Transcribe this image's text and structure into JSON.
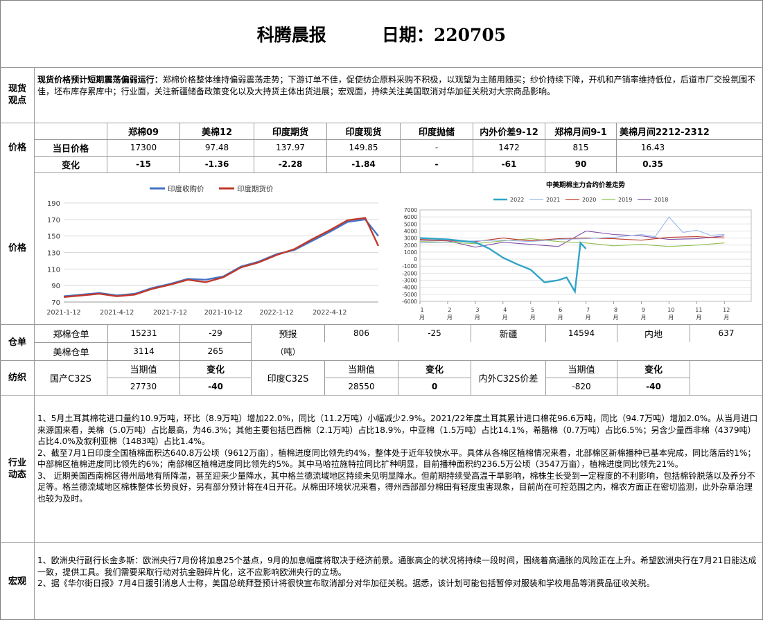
{
  "header": {
    "title": "科腾晨报",
    "date_label": "日期：220705"
  },
  "sections": {
    "spot_view": "现货观点",
    "price": "价格",
    "price_charts": "价格",
    "warehouse": "仓单",
    "textile": "纺织",
    "industry": "行业动态",
    "macro": "宏观"
  },
  "spot_view": {
    "lead": "现货价格预计短期震荡偏弱运行：",
    "text": "郑棉价格整体维持偏弱震荡走势；下游订单不佳，促使纺企原料采购不积极，以观望为主随用随买；纱价持续下降，开机和产销率维持低位，后道市厂交投氛围不佳，坯布库存累库中；行业面，关注新疆储备政策变化以及大持货主体出货进展；宏观面，持续关注美国取消对华加征关税对大宗商品影响。"
  },
  "price_table": {
    "headers": [
      "郑棉09",
      "美棉12",
      "印度期货",
      "印度现货",
      "印度抛储",
      "内外价差9-12",
      "郑棉月间9-1",
      "美棉月间2212-2312"
    ],
    "row1_label": "当日价格",
    "row1": [
      "17300",
      "97.48",
      "137.97",
      "149.85",
      "-",
      "1472",
      "815",
      "16.43"
    ],
    "row2_label": "变化",
    "row2": [
      "-15",
      "-1.36",
      "-2.28",
      "-1.84",
      "-",
      "-61",
      "90",
      "0.35"
    ]
  },
  "chart_data": [
    {
      "type": "line",
      "title": "",
      "legend_placement": "top",
      "x_tick_labels": [
        "2021-1-12",
        "2021-4-12",
        "2021-7-12",
        "2021-10-12",
        "2022-1-12",
        "2022-4-12"
      ],
      "ylim": [
        70,
        190
      ],
      "y_ticks": [
        70,
        90,
        110,
        130,
        150,
        170,
        190
      ],
      "series": [
        {
          "name": "印度收购价",
          "color": "#4472c4",
          "x": [
            "2021-1-12",
            "2021-2-12",
            "2021-3-12",
            "2021-4-12",
            "2021-5-12",
            "2021-6-12",
            "2021-7-12",
            "2021-8-12",
            "2021-9-12",
            "2021-10-12",
            "2021-11-12",
            "2021-12-12",
            "2022-1-12",
            "2022-2-12",
            "2022-3-12",
            "2022-4-12",
            "2022-5-12",
            "2022-6-12",
            "2022-7-4"
          ],
          "values": [
            77,
            79,
            81,
            78,
            80,
            87,
            92,
            98,
            97,
            101,
            113,
            119,
            128,
            133,
            144,
            155,
            167,
            170,
            150
          ]
        },
        {
          "name": "印度期货价",
          "color": "#c0392b",
          "x": [
            "2021-1-12",
            "2021-2-12",
            "2021-3-12",
            "2021-4-12",
            "2021-5-12",
            "2021-6-12",
            "2021-7-12",
            "2021-8-12",
            "2021-9-12",
            "2021-10-12",
            "2021-11-12",
            "2021-12-12",
            "2022-1-12",
            "2022-2-12",
            "2022-3-12",
            "2022-4-12",
            "2022-5-12",
            "2022-6-12",
            "2022-7-4"
          ],
          "values": [
            76,
            78,
            80,
            77,
            79,
            86,
            91,
            97,
            94,
            100,
            112,
            118,
            127,
            134,
            146,
            157,
            169,
            172,
            138
          ]
        }
      ]
    },
    {
      "type": "line",
      "title": "中美期棉主力合约价差走势",
      "legend_placement": "top",
      "x_tick_labels": [
        "1月",
        "2月",
        "3月",
        "4月",
        "5月",
        "6月",
        "7月",
        "8月",
        "9月",
        "10月",
        "11月",
        "12月"
      ],
      "ylim": [
        -6000,
        7000
      ],
      "y_ticks": [
        -6000,
        -5000,
        -4000,
        -3000,
        -2000,
        -1000,
        0,
        1000,
        2000,
        3000,
        4000,
        5000,
        6000,
        7000
      ],
      "series": [
        {
          "name": "2022",
          "color": "#2fa4c8",
          "x": [
            1,
            1.5,
            2,
            2.5,
            3,
            3.5,
            4,
            4.5,
            5,
            5.5,
            6,
            6.3,
            6.6,
            6.8,
            7
          ],
          "values": [
            3000,
            2900,
            2800,
            2600,
            2400,
            1500,
            200,
            -700,
            -1500,
            -3300,
            -3000,
            -2600,
            -4600,
            2300,
            1472
          ]
        },
        {
          "name": "2021",
          "color": "#9ab7e6",
          "x": [
            1,
            2,
            3,
            4,
            5,
            6,
            7,
            8,
            9,
            9.5,
            10,
            10.5,
            11,
            11.5,
            12
          ],
          "values": [
            2300,
            2400,
            2600,
            2700,
            2500,
            2800,
            2900,
            3100,
            3500,
            3200,
            6000,
            3800,
            4100,
            3400,
            3500
          ]
        },
        {
          "name": "2020",
          "color": "#c0392b",
          "x": [
            1,
            2,
            3,
            4,
            5,
            6,
            7,
            8,
            9,
            10,
            11,
            12
          ],
          "values": [
            2800,
            2600,
            2500,
            3000,
            2600,
            2900,
            3000,
            2900,
            2700,
            3100,
            3200,
            3000
          ]
        },
        {
          "name": "2019",
          "color": "#92c050",
          "x": [
            1,
            2,
            3,
            4,
            5,
            6,
            7,
            8,
            9,
            10,
            11,
            12
          ],
          "values": [
            2500,
            2400,
            2200,
            2600,
            2900,
            2500,
            2300,
            1900,
            2100,
            1800,
            2000,
            2300
          ]
        },
        {
          "name": "2018",
          "color": "#7f4fa8",
          "x": [
            1,
            2,
            3,
            4,
            5,
            6,
            7,
            8,
            9,
            10,
            11,
            12
          ],
          "values": [
            2700,
            2600,
            1700,
            2400,
            2100,
            1800,
            4000,
            3500,
            3300,
            2800,
            2900,
            3300
          ]
        }
      ]
    }
  ],
  "warehouse": {
    "zz_label": "郑棉仓单",
    "zz_value": "15231",
    "zz_change": "-29",
    "forecast_label": "预报",
    "forecast_value": "806",
    "forecast_change": "-25",
    "xinjiang_label": "新疆",
    "xinjiang_value": "14594",
    "inland_label": "内地",
    "inland_value": "637",
    "us_label": "美棉仓单",
    "us_value": "3114",
    "us_change": "265",
    "unit": "（吨）"
  },
  "textile": {
    "cur_label": "当期值",
    "chg_label": "变化",
    "domestic_label": "国产C32S",
    "domestic_value": "27730",
    "domestic_change": "-40",
    "india_label": "印度C32S",
    "india_value": "28550",
    "india_change": "0",
    "spread_label": "内外C32S价差",
    "spread_value": "-820",
    "spread_change": "-40"
  },
  "industry": {
    "p1": "1、5月土耳其棉花进口量约10.9万吨，环比（8.9万吨）增加22.0%，同比（11.2万吨）小幅减少2.9%。2021/22年度土耳其累计进口棉花96.6万吨，同比（94.7万吨）增加2.0%。从当月进口来源国来看，美棉（5.0万吨）占比最高，为46.3%；其他主要包括巴西棉（2.1万吨）占比18.9%，中亚棉（1.5万吨）占比14.1%，希腊棉（0.7万吨）占比6.5%；另含少量西非棉（4379吨）占比4.0%及叙利亚棉（1483吨）占比1.4%。",
    "p2": "2、截至7月1日印度全国植棉面积达640.8万公顷（9612万亩），植棉进度同比领先约4%，整体处于近年较快水平。具体从各棉区植棉情况来看，北部棉区新棉播种已基本完成，同比落后约1%；中部棉区植棉进度同比领先约6%；南部棉区植棉进度同比领先约5%。其中马哈拉施特拉同比扩种明显，目前播种面积约236.5万公顷（3547万亩），植棉进度同比领先21%。",
    "p3": "3、  近期美国西南棉区得州局地有所降温，甚至迎来少量降水，其中格兰德流域地区持续未见明显降水。但前期持续受高温干旱影响，棉株生长受到一定程度的不利影响，包括棉铃脱落以及养分不足等。格兰德流域地区棉株整体长势良好，另有部分预计将在4日开花。从棉田环境状况来看，得州西部部分棉田有轻度虫害现象，目前尚在可控范围之内，棉农方面正在密切监测，此外杂草治理也较为及时。"
  },
  "macro": {
    "p1": "1、欧洲央行副行长金多斯：欧洲央行7月份将加息25个基点，9月的加息幅度将取决于经济前景。通胀高企的状况将持续一段时间，围绕着高通胀的风险正在上升。希望欧洲央行在7月21日能达成一致，提供工具。我们需要采取行动对抗金融碎片化，这不应影响欧洲央行的立场。",
    "p2": "2、据《华尔街日报》7月4日援引消息人士称，美国总统拜登预计将很快宣布取消部分对华加征关税。据悉，该计划可能包括暂停对服装和学校用品等消费品征收关税。"
  }
}
